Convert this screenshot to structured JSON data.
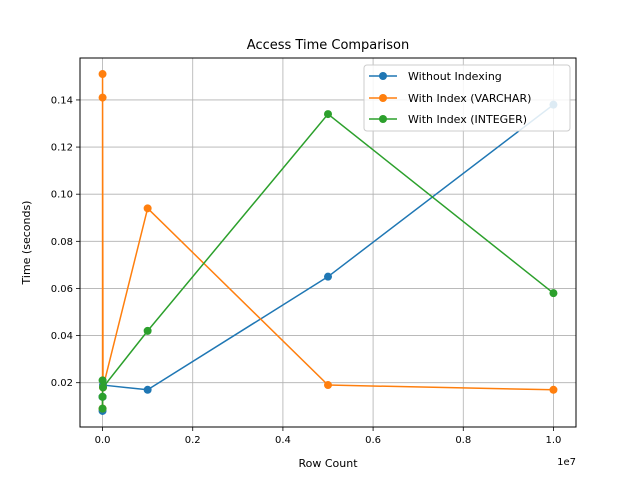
{
  "chart_data": {
    "type": "line",
    "title": "Access Time Comparison",
    "xlabel": "Row Count",
    "ylabel": "Time (seconds)",
    "x_offset_label": "1e7",
    "xlim": [
      -500000,
      10500000
    ],
    "ylim": [
      0.0012,
      0.1578
    ],
    "x_ticks": [
      0,
      2000000,
      4000000,
      6000000,
      8000000,
      10000000
    ],
    "x_tick_labels": [
      "0.0",
      "0.2",
      "0.4",
      "0.6",
      "0.8",
      "1.0"
    ],
    "y_ticks": [
      0.02,
      0.04,
      0.06,
      0.08,
      0.1,
      0.12,
      0.14
    ],
    "y_tick_labels": [
      "0.02",
      "0.04",
      "0.06",
      "0.08",
      "0.10",
      "0.12",
      "0.14"
    ],
    "grid": true,
    "legend_position": "top-right",
    "x": [
      10,
      100,
      1000,
      10000,
      1000000,
      5000000,
      10000000
    ],
    "series": [
      {
        "name": "Without Indexing",
        "color": "#1f77b4",
        "values": [
          0.008,
          0.014,
          0.014,
          0.019,
          0.017,
          0.065,
          0.138
        ]
      },
      {
        "name": "With Index (VARCHAR)",
        "color": "#ff7f0e",
        "values": [
          0.009,
          0.151,
          0.141,
          0.018,
          0.094,
          0.019,
          0.017
        ]
      },
      {
        "name": "With Index (INTEGER)",
        "color": "#2ca02c",
        "values": [
          0.009,
          0.014,
          0.021,
          0.018,
          0.042,
          0.134,
          0.058
        ]
      }
    ]
  }
}
